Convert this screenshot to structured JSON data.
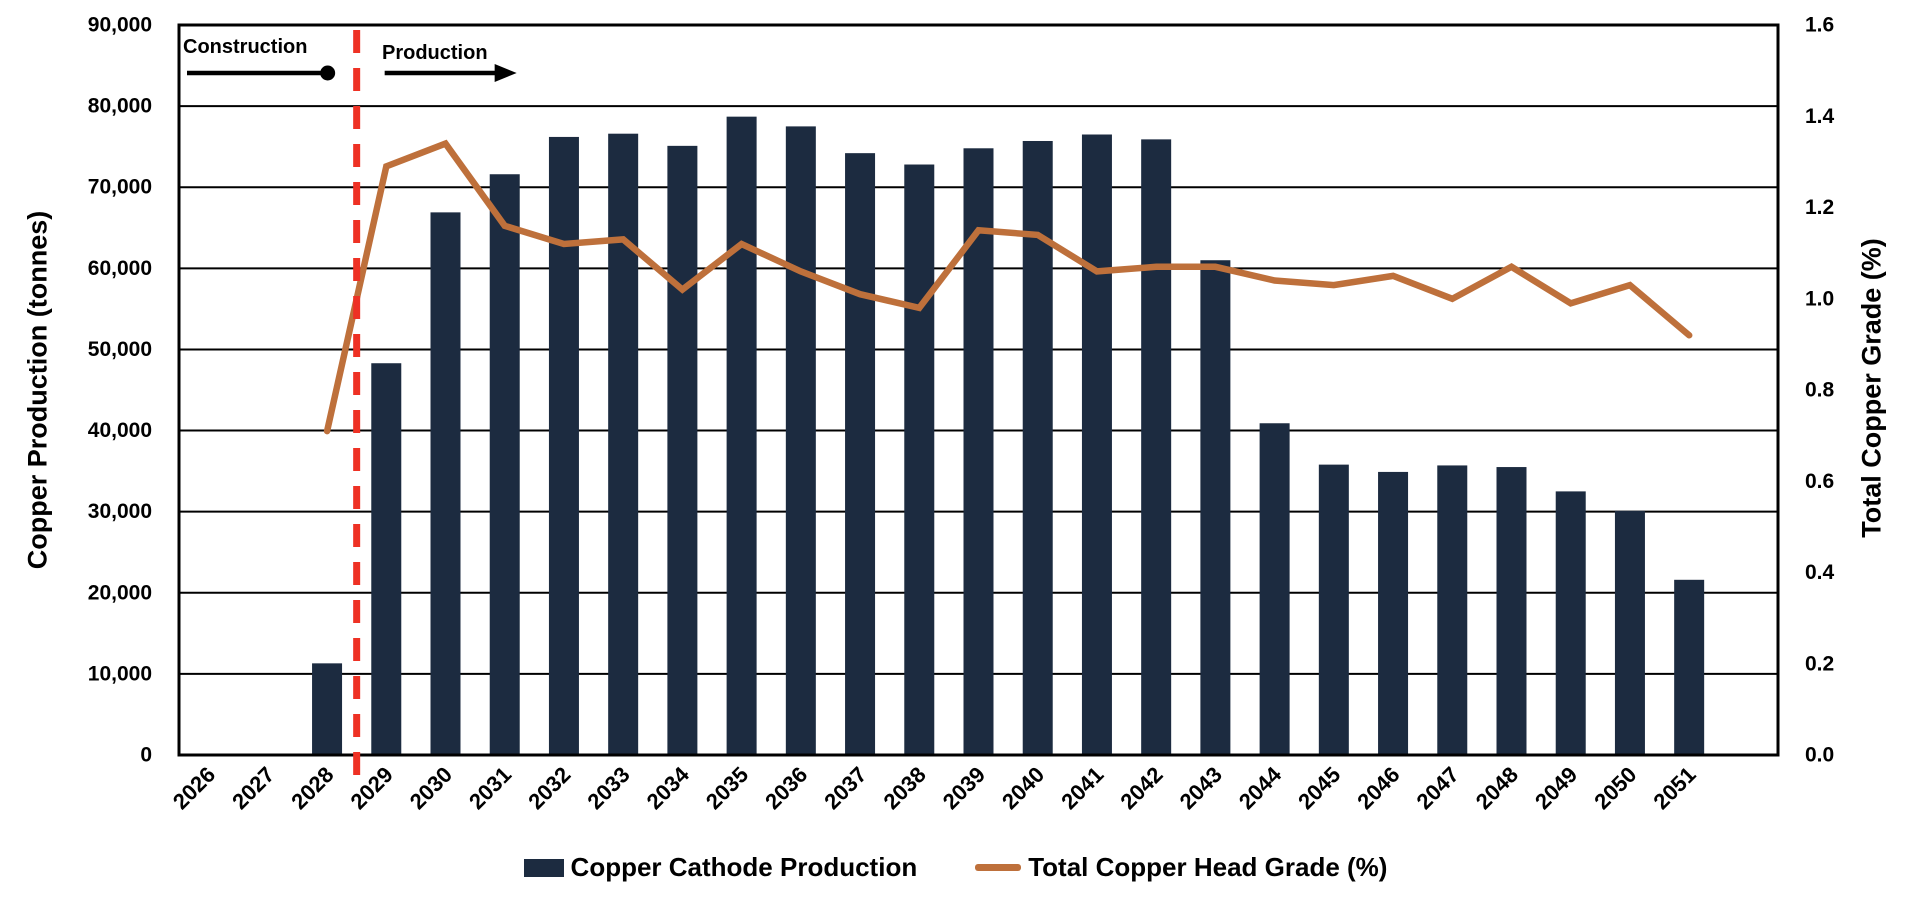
{
  "chart_data": {
    "type": "combo-bar-line",
    "title": "",
    "categories": [
      "2026",
      "2027",
      "2028",
      "2029",
      "2030",
      "2031",
      "2032",
      "2033",
      "2034",
      "2035",
      "2036",
      "2037",
      "2038",
      "2039",
      "2040",
      "2041",
      "2042",
      "2043",
      "2044",
      "2045",
      "2046",
      "2047",
      "2048",
      "2049",
      "2050",
      "2051"
    ],
    "series": [
      {
        "name": "Copper Cathode Production",
        "chart_type": "bar",
        "axis": "left",
        "color": "#1C2B40",
        "values": [
          null,
          null,
          11300,
          48300,
          66900,
          71600,
          76200,
          76600,
          75100,
          78700,
          77500,
          74200,
          72800,
          74800,
          75700,
          76500,
          75900,
          61000,
          40900,
          35800,
          34900,
          35700,
          35500,
          32500,
          30100,
          21600
        ]
      },
      {
        "name": "Total Copper Head Grade (%)",
        "chart_type": "line",
        "axis": "right",
        "color": "#BE703B",
        "values": [
          null,
          null,
          0.71,
          1.29,
          1.34,
          1.16,
          1.12,
          1.13,
          1.02,
          1.12,
          1.06,
          1.01,
          0.98,
          1.15,
          1.14,
          1.06,
          1.07,
          1.07,
          1.04,
          1.03,
          1.05,
          1.0,
          1.07,
          0.99,
          1.03,
          0.92
        ]
      }
    ],
    "left_axis": {
      "title": "Copper Production (tonnes)",
      "min": 0,
      "max": 90000,
      "step": 10000,
      "tick_labels": [
        "0",
        "10,000",
        "20,000",
        "30,000",
        "40,000",
        "50,000",
        "60,000",
        "70,000",
        "80,000",
        "90,000"
      ]
    },
    "right_axis": {
      "title": "Total Copper Grade (%)",
      "min": 0.0,
      "max": 1.6,
      "step": 0.2,
      "tick_labels": [
        "0.0",
        "0.2",
        "0.4",
        "0.6",
        "0.8",
        "1.0",
        "1.2",
        "1.4",
        "1.6"
      ]
    },
    "annotations": {
      "construction_label": "Construction",
      "production_label": "Production",
      "phase_divider_after_category": "2028",
      "divider_color": "#EE3124",
      "arrow_color": "#000000"
    },
    "legend": [
      {
        "label": "Copper Cathode Production",
        "marker": "bar-swatch",
        "color": "#1C2B40"
      },
      {
        "label": "Total Copper Head Grade (%)",
        "marker": "line-swatch",
        "color": "#BE703B"
      }
    ],
    "grid": "horizontal",
    "legend_position": "bottom"
  }
}
